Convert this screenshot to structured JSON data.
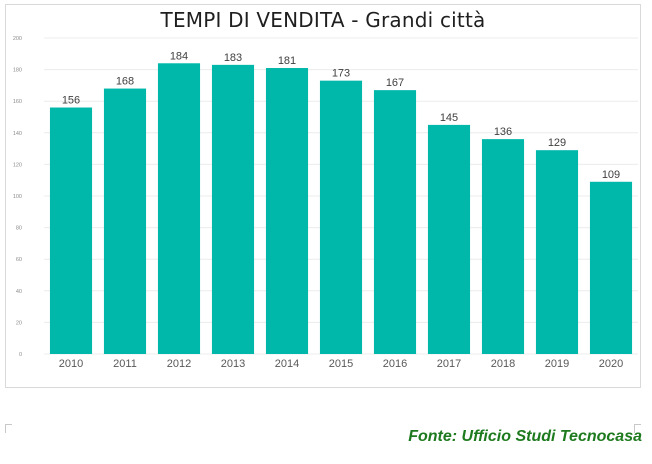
{
  "chart_data": {
    "type": "bar",
    "title": "TEMPI DI VENDITA - Grandi città",
    "categories": [
      "2010",
      "2011",
      "2012",
      "2013",
      "2014",
      "2015",
      "2016",
      "2017",
      "2018",
      "2019",
      "2020"
    ],
    "values": [
      156,
      168,
      184,
      183,
      181,
      173,
      167,
      145,
      136,
      129,
      109
    ],
    "ylim": [
      0,
      200
    ],
    "yticks": [
      "0",
      "20",
      "40",
      "60",
      "80",
      "100",
      "120",
      "140",
      "160",
      "180",
      "200"
    ],
    "grid": true,
    "legend": "none",
    "bar_color": "#00b8aa"
  },
  "source": "Fonte: Ufficio Studi Tecnocasa"
}
